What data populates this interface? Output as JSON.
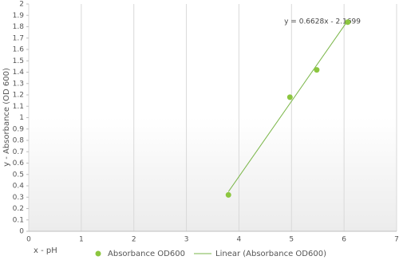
{
  "chart_data": {
    "type": "scatter",
    "x_label": "x - pH",
    "y_label": "y - Absorbance (OD 600)",
    "series": [
      {
        "name": "Absorbance OD600",
        "color": "#8cc63f",
        "x": [
          3.8,
          4.97,
          5.48,
          6.07
        ],
        "values": [
          0.32,
          1.18,
          1.42,
          1.84
        ]
      }
    ],
    "trendline": {
      "name": "Linear (Absorbance OD600)",
      "label": "y = 0.6628x - 2.1699",
      "slope": 0.6628,
      "intercept": -2.1699,
      "color": "#7ab648"
    },
    "xlim": [
      0,
      7
    ],
    "xticks": [
      0,
      1,
      2,
      3,
      4,
      5,
      6,
      7
    ],
    "ylim": [
      0,
      2
    ],
    "yticks": [
      0,
      0.1,
      0.2,
      0.3,
      0.4,
      0.5,
      0.6,
      0.7,
      0.8,
      0.9,
      1,
      1.1,
      1.2,
      1.3,
      1.4,
      1.5,
      1.6,
      1.7,
      1.8,
      1.9,
      2
    ],
    "grid": true
  }
}
